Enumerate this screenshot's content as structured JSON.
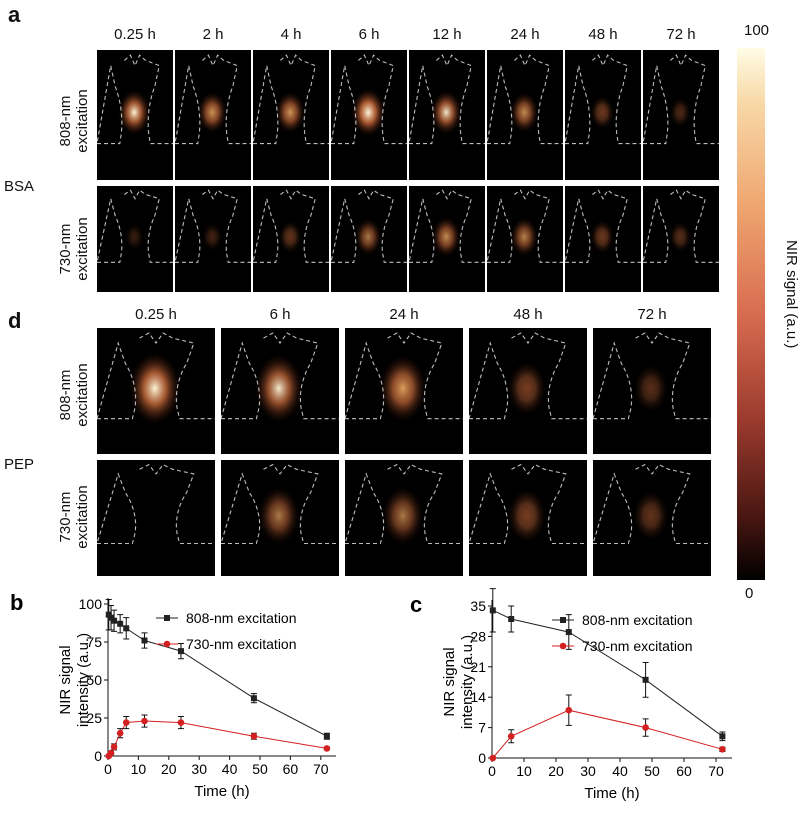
{
  "panel_a": {
    "letter": "a",
    "times": [
      "0.25 h",
      "2 h",
      "4 h",
      "6 h",
      "12 h",
      "24 h",
      "48 h",
      "72 h"
    ],
    "row_labels": [
      "808-nm excitation",
      "730-nm excitation"
    ],
    "group": "BSA",
    "intensities_808": [
      0.9,
      0.75,
      0.75,
      1.0,
      0.85,
      0.7,
      0.45,
      0.3
    ],
    "intensities_730": [
      0.2,
      0.25,
      0.4,
      0.6,
      0.7,
      0.65,
      0.45,
      0.35
    ]
  },
  "panel_d": {
    "letter": "d",
    "times": [
      "0.25 h",
      "6 h",
      "24 h",
      "48 h",
      "72 h"
    ],
    "row_labels": [
      "808-nm excitation",
      "730-nm excitation"
    ],
    "group": "PEP",
    "intensities_808": [
      0.95,
      0.85,
      0.8,
      0.5,
      0.35
    ],
    "intensities_730": [
      0.0,
      0.6,
      0.6,
      0.5,
      0.4
    ]
  },
  "colorbar": {
    "max_label": "100",
    "min_label": "0",
    "axis_label": "NIR signal (a.u.)"
  },
  "chart_data": [
    {
      "type": "line",
      "panel": "b",
      "xlabel": "Time (h)",
      "ylabel": "NIR signal intensity (a.u.)",
      "xlim": [
        0,
        75
      ],
      "ylim": [
        0,
        100
      ],
      "xticks": [
        0,
        10,
        20,
        30,
        40,
        50,
        60,
        70
      ],
      "yticks": [
        0,
        25,
        50,
        75,
        100
      ],
      "legend_position": "top-right",
      "series": [
        {
          "name": "808-nm excitation",
          "color": "#222222",
          "marker": "square",
          "x": [
            0.25,
            1,
            2,
            4,
            6,
            12,
            24,
            48,
            72
          ],
          "y": [
            93,
            91,
            89,
            87,
            84,
            76,
            69,
            38,
            13
          ],
          "err": [
            10,
            8,
            7,
            6,
            7,
            5,
            5,
            3,
            2
          ]
        },
        {
          "name": "730-nm excitation",
          "color": "#d42020",
          "marker": "circle",
          "x": [
            0.25,
            1,
            2,
            4,
            6,
            12,
            24,
            48,
            72
          ],
          "y": [
            0,
            2,
            6,
            15,
            22,
            23,
            22,
            13,
            5
          ],
          "err": [
            1,
            1,
            2,
            3,
            4,
            4,
            4,
            2,
            1
          ]
        }
      ]
    },
    {
      "type": "line",
      "panel": "c",
      "xlabel": "Time (h)",
      "ylabel": "NIR signal intensity (a.u.)",
      "xlim": [
        0,
        75
      ],
      "ylim": [
        0,
        35
      ],
      "xticks": [
        0,
        10,
        20,
        30,
        40,
        50,
        60,
        70
      ],
      "yticks": [
        0,
        7,
        14,
        21,
        28,
        35
      ],
      "legend_position": "top-right",
      "series": [
        {
          "name": "808-nm excitation",
          "color": "#222222",
          "marker": "square",
          "x": [
            0.25,
            6,
            24,
            48,
            72
          ],
          "y": [
            34,
            32,
            29,
            18,
            5
          ],
          "err": [
            5,
            3,
            4,
            4,
            1
          ]
        },
        {
          "name": "730-nm excitation",
          "color": "#d42020",
          "marker": "circle",
          "x": [
            0.25,
            6,
            24,
            48,
            72
          ],
          "y": [
            0,
            5,
            11,
            7,
            2
          ],
          "err": [
            0.3,
            1.5,
            3.5,
            2,
            0.5
          ]
        }
      ]
    }
  ]
}
